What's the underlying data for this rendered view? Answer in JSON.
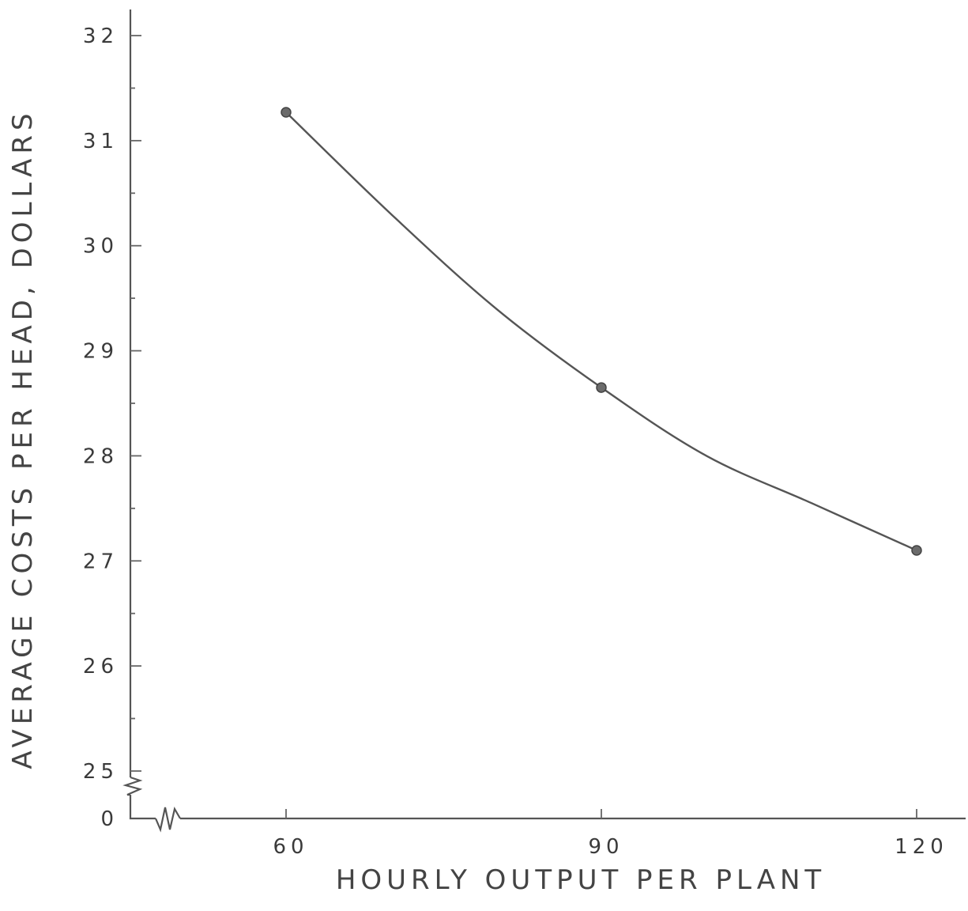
{
  "chart_data": {
    "type": "line",
    "title": "",
    "xlabel": "HOURLY OUTPUT PER PLANT",
    "ylabel": "AVERAGE COSTS PER HEAD, DOLLARS",
    "x_ticks": [
      "60",
      "90",
      "120"
    ],
    "y_ticks": [
      "32",
      "31",
      "30",
      "29",
      "28",
      "27",
      "26",
      "25",
      "0"
    ],
    "axis_breaks": [
      "x",
      "y"
    ],
    "xlim": [
      60,
      120
    ],
    "ylim": [
      25,
      32
    ],
    "grid": false,
    "series": [
      {
        "x": [
          60,
          90,
          120
        ],
        "y": [
          31.27,
          28.65,
          27.1
        ],
        "curve_through": [
          {
            "x": 70,
            "y": 30.3
          },
          {
            "x": 80,
            "y": 29.4
          },
          {
            "x": 100,
            "y": 28.0
          },
          {
            "x": 110,
            "y": 27.55
          }
        ]
      }
    ]
  }
}
